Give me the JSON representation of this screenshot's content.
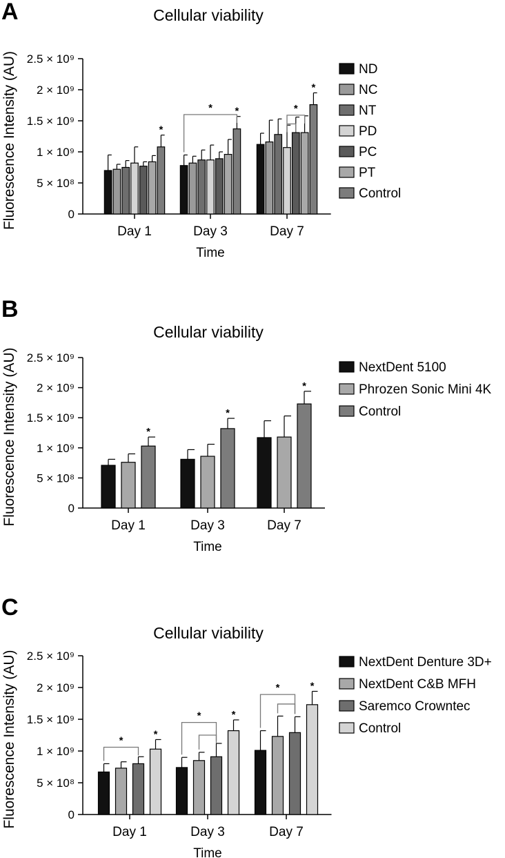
{
  "figure": {
    "panel_letters": [
      "A",
      "B",
      "C"
    ]
  },
  "chart_data": [
    {
      "type": "bar",
      "panel": "A",
      "title": "Cellular viability",
      "xlabel": "Time",
      "ylabel": "Fluorescence Intensity (AU)",
      "ylim": [
        0,
        2500000000
      ],
      "yticks": [
        {
          "value": 0,
          "label": "0"
        },
        {
          "value": 500000000,
          "label": "5 × 10⁸"
        },
        {
          "value": 1000000000,
          "label": "1 × 10⁹"
        },
        {
          "value": 1500000000,
          "label": "1.5 × 10⁹"
        },
        {
          "value": 2000000000,
          "label": "2 × 10⁹"
        },
        {
          "value": 2500000000,
          "label": "2.5 × 10⁹"
        }
      ],
      "categories": [
        "Day 1",
        "Day 3",
        "Day 7"
      ],
      "series": [
        {
          "name": "ND",
          "color": "#111111",
          "values": [
            700000000,
            780000000,
            1120000000
          ],
          "errors": [
            250000000,
            170000000,
            180000000
          ],
          "sig": [
            false,
            false,
            false
          ]
        },
        {
          "name": "NC",
          "color": "#9a9a9a",
          "values": [
            720000000,
            820000000,
            1160000000
          ],
          "errors": [
            80000000,
            110000000,
            350000000
          ],
          "sig": [
            false,
            false,
            false
          ]
        },
        {
          "name": "NT",
          "color": "#6e6e6e",
          "values": [
            750000000,
            870000000,
            1280000000
          ],
          "errors": [
            110000000,
            160000000,
            250000000
          ],
          "sig": [
            false,
            false,
            false
          ]
        },
        {
          "name": "PD",
          "color": "#d4d4d4",
          "values": [
            820000000,
            870000000,
            1070000000
          ],
          "errors": [
            260000000,
            240000000,
            360000000
          ],
          "sig": [
            false,
            false,
            false
          ]
        },
        {
          "name": "PC",
          "color": "#5a5a5a",
          "values": [
            770000000,
            890000000,
            1310000000
          ],
          "errors": [
            70000000,
            110000000,
            250000000
          ],
          "sig": [
            false,
            false,
            false
          ]
        },
        {
          "name": "PT",
          "color": "#a8a8a8",
          "values": [
            840000000,
            960000000,
            1310000000
          ],
          "errors": [
            100000000,
            240000000,
            270000000
          ],
          "sig": [
            false,
            false,
            false
          ]
        },
        {
          "name": "Control",
          "color": "#7c7c7c",
          "values": [
            1080000000,
            1370000000,
            1760000000
          ],
          "errors": [
            190000000,
            200000000,
            190000000
          ],
          "sig": [
            true,
            true,
            true
          ]
        }
      ],
      "brackets": [
        {
          "from_category": 1,
          "from_series": 0,
          "to_category": 1,
          "to_series": 6,
          "level": 1600000000,
          "label": "*"
        },
        {
          "from_category": 2,
          "from_series": 3,
          "to_category": 2,
          "to_series": 5,
          "level": 1590000000,
          "label": "*"
        },
        {
          "from_category": 2,
          "from_series": 3,
          "to_category": 2,
          "to_series": 4,
          "level": 1450000000,
          "label": ""
        }
      ],
      "legend_position": "right",
      "grid": false
    },
    {
      "type": "bar",
      "panel": "B",
      "title": "Cellular viability",
      "xlabel": "Time",
      "ylabel": "Fluorescence Intensity (AU)",
      "ylim": [
        0,
        2500000000
      ],
      "yticks": [
        {
          "value": 0,
          "label": "0"
        },
        {
          "value": 500000000,
          "label": "5 × 10⁸"
        },
        {
          "value": 1000000000,
          "label": "1 × 10⁹"
        },
        {
          "value": 1500000000,
          "label": "1.5 × 10⁹"
        },
        {
          "value": 2000000000,
          "label": "2 × 10⁹"
        },
        {
          "value": 2500000000,
          "label": "2.5 × 10⁹"
        }
      ],
      "categories": [
        "Day 1",
        "Day 3",
        "Day 7"
      ],
      "series": [
        {
          "name": "NextDent 5100",
          "color": "#111111",
          "values": [
            710000000,
            810000000,
            1170000000
          ],
          "errors": [
            100000000,
            160000000,
            280000000
          ],
          "sig": [
            false,
            false,
            false
          ]
        },
        {
          "name": "Phrozen Sonic Mini 4K",
          "color": "#a8a8a8",
          "values": [
            760000000,
            860000000,
            1180000000
          ],
          "errors": [
            140000000,
            200000000,
            350000000
          ],
          "sig": [
            false,
            false,
            false
          ]
        },
        {
          "name": "Control",
          "color": "#7c7c7c",
          "values": [
            1030000000,
            1320000000,
            1730000000
          ],
          "errors": [
            150000000,
            170000000,
            210000000
          ],
          "sig": [
            true,
            true,
            true
          ]
        }
      ],
      "brackets": [],
      "legend_position": "right",
      "grid": false
    },
    {
      "type": "bar",
      "panel": "C",
      "title": "Cellular viability",
      "xlabel": "Time",
      "ylabel": "Fluorescence Intensity (AU)",
      "ylim": [
        0,
        2500000000
      ],
      "yticks": [
        {
          "value": 0,
          "label": "0"
        },
        {
          "value": 500000000,
          "label": "5 × 10⁸"
        },
        {
          "value": 1000000000,
          "label": "1 × 10⁹"
        },
        {
          "value": 1500000000,
          "label": "1.5 × 10⁹"
        },
        {
          "value": 2000000000,
          "label": "2 × 10⁹"
        },
        {
          "value": 2500000000,
          "label": "2.5 × 10⁹"
        }
      ],
      "categories": [
        "Day 1",
        "Day 3",
        "Day 7"
      ],
      "series": [
        {
          "name": "NextDent Denture 3D+",
          "color": "#111111",
          "values": [
            670000000,
            740000000,
            1010000000
          ],
          "errors": [
            130000000,
            160000000,
            310000000
          ],
          "sig": [
            false,
            false,
            false
          ]
        },
        {
          "name": "NextDent C&B MFH",
          "color": "#a8a8a8",
          "values": [
            730000000,
            850000000,
            1230000000
          ],
          "errors": [
            100000000,
            130000000,
            320000000
          ],
          "sig": [
            false,
            false,
            false
          ]
        },
        {
          "name": "Saremco Crowntec",
          "color": "#6e6e6e",
          "values": [
            800000000,
            910000000,
            1290000000
          ],
          "errors": [
            110000000,
            210000000,
            250000000
          ],
          "sig": [
            false,
            false,
            false
          ]
        },
        {
          "name": "Control",
          "color": "#d4d4d4",
          "values": [
            1030000000,
            1320000000,
            1730000000
          ],
          "errors": [
            150000000,
            170000000,
            210000000
          ],
          "sig": [
            true,
            true,
            true
          ]
        }
      ],
      "brackets": [
        {
          "from_category": 0,
          "from_series": 0,
          "to_category": 0,
          "to_series": 2,
          "level": 1060000000,
          "label": "*"
        },
        {
          "from_category": 1,
          "from_series": 0,
          "to_category": 1,
          "to_series": 2,
          "level": 1450000000,
          "label": "*"
        },
        {
          "from_category": 1,
          "from_series": 1,
          "to_category": 1,
          "to_series": 2,
          "level": 1250000000,
          "label": ""
        },
        {
          "from_category": 2,
          "from_series": 0,
          "to_category": 2,
          "to_series": 2,
          "level": 1890000000,
          "label": "*"
        },
        {
          "from_category": 2,
          "from_series": 1,
          "to_category": 2,
          "to_series": 2,
          "level": 1740000000,
          "label": ""
        }
      ],
      "legend_position": "right",
      "grid": false
    }
  ]
}
